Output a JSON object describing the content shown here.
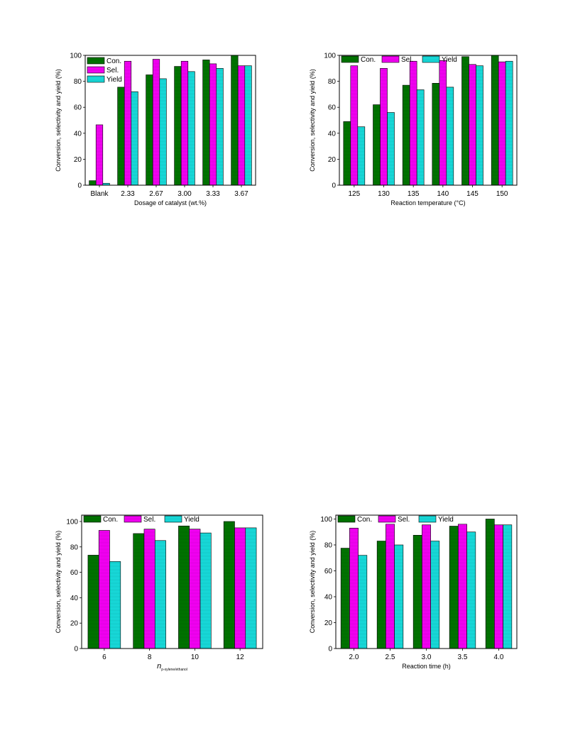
{
  "chart_data": [
    {
      "type": "bar",
      "ylabel": "Conversion, selectivity and yield (%)",
      "xlabel": "Dosage of catalyst (wt.%)",
      "categories": [
        "Blank",
        "2.33",
        "2.67",
        "3.00",
        "3.33",
        "3.67"
      ],
      "ylim": [
        0,
        100
      ],
      "yticks": [
        "0",
        "20",
        "40",
        "60",
        "80",
        "100"
      ],
      "legend": "top-left, stacked",
      "series": [
        {
          "name": "Con.",
          "values": [
            3.5,
            75.5,
            85,
            91.5,
            96.5,
            100
          ]
        },
        {
          "name": "Sel.",
          "values": [
            46.5,
            95.5,
            97,
            95.5,
            93.5,
            92
          ]
        },
        {
          "name": "Yield",
          "values": [
            1.5,
            72,
            82,
            87.5,
            90,
            92
          ]
        }
      ]
    },
    {
      "type": "bar",
      "ylabel": "Conversion, selectivity and yield (%)",
      "xlabel": "Reaction temperature (°C)",
      "categories": [
        "125",
        "130",
        "135",
        "140",
        "145",
        "150"
      ],
      "ylim": [
        0,
        100
      ],
      "yticks": [
        "0",
        "20",
        "40",
        "60",
        "80",
        "100"
      ],
      "legend": "top, in a row",
      "series": [
        {
          "name": "Con.",
          "values": [
            49,
            62,
            77,
            78.5,
            99,
            100
          ]
        },
        {
          "name": "Sel.",
          "values": [
            92,
            90,
            95.5,
            96,
            93,
            95
          ]
        },
        {
          "name": "Yield",
          "values": [
            45,
            56,
            73.5,
            75.5,
            92,
            95.5
          ]
        }
      ]
    },
    {
      "type": "bar",
      "ylabel": "Conversion, selectivity and yield (%)",
      "xlabel": "n",
      "xlabel_sub": "p-xylene/ethanol",
      "categories": [
        "6",
        "8",
        "10",
        "12"
      ],
      "ylim": [
        0,
        105
      ],
      "yticks": [
        "0",
        "20",
        "40",
        "60",
        "80",
        "100"
      ],
      "legend": "top, in a row",
      "series": [
        {
          "name": "Con.",
          "values": [
            73.5,
            90.5,
            96.5,
            100
          ]
        },
        {
          "name": "Sel.",
          "values": [
            93,
            94,
            94,
            95
          ]
        },
        {
          "name": "Yield",
          "values": [
            68.5,
            85,
            91,
            95
          ]
        }
      ]
    },
    {
      "type": "bar",
      "ylabel": "Conversion, selectivity and yield (%)",
      "xlabel": "Reaction time (h)",
      "categories": [
        "2.0",
        "2.5",
        "3.0",
        "3.5",
        "4.0"
      ],
      "ylim": [
        0,
        103
      ],
      "yticks": [
        "0",
        "20",
        "40",
        "60",
        "80",
        "100"
      ],
      "legend": "top, in a row",
      "series": [
        {
          "name": "Con.",
          "values": [
            77.5,
            83,
            87.5,
            94.5,
            100
          ]
        },
        {
          "name": "Sel.",
          "values": [
            93,
            96,
            95.5,
            96,
            95.5
          ]
        },
        {
          "name": "Yield",
          "values": [
            72,
            80,
            83,
            90,
            95.5
          ]
        }
      ]
    }
  ],
  "colors": {
    "con": "#007a00",
    "sel": "#ff00ff",
    "yield": "#19e5e5"
  }
}
